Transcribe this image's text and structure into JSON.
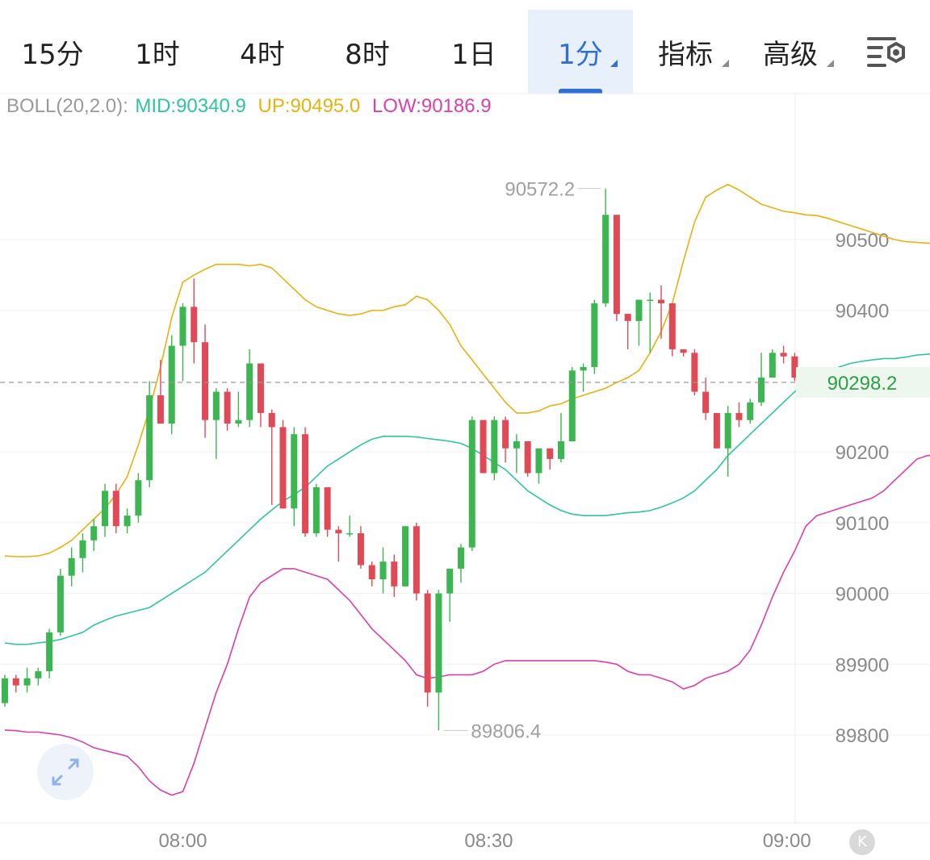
{
  "tabs": [
    {
      "label": "15分",
      "active": false,
      "dropdown": false
    },
    {
      "label": "1时",
      "active": false,
      "dropdown": false
    },
    {
      "label": "4时",
      "active": false,
      "dropdown": false
    },
    {
      "label": "8时",
      "active": false,
      "dropdown": false
    },
    {
      "label": "1日",
      "active": false,
      "dropdown": false
    },
    {
      "label": "1分",
      "active": true,
      "dropdown": true
    },
    {
      "label": "指标",
      "active": false,
      "dropdown": true
    },
    {
      "label": "高级",
      "active": false,
      "dropdown": true
    }
  ],
  "settings_icon": "chart-settings-icon",
  "expand_icon": "expand-arrows-icon",
  "k_button": "K",
  "legend": {
    "name": "BOLL(20,2.0):",
    "mid": "MID:90340.9",
    "up": "UP:90495.0",
    "low": "LOW:90186.9"
  },
  "colors": {
    "up_candle": "#3cb650",
    "down_candle": "#e04a57",
    "mid": "#2ec4a2",
    "upper": "#e8b10e",
    "lower": "#db3fae",
    "active_tab": "#2f6fd6",
    "legend_label": "#9a9a9a",
    "price_tag_bg": "#edf7ee",
    "price_tag_text": "#2f9e45"
  },
  "chart_data": {
    "type": "candlestick",
    "indicator": "BOLL(20,2.0)",
    "current_price": 90298.2,
    "current_price_label": "90298.2",
    "max_label": "90572.2",
    "min_label": "89806.4",
    "y_ticks": [
      90500,
      90400,
      90200,
      90100,
      90000,
      89900,
      89800
    ],
    "y_tick_labels": [
      "90500",
      "90400",
      "90200",
      "90100",
      "90000",
      "89900",
      "89800"
    ],
    "x_ticks": [
      "08:00",
      "08:30",
      "09:00"
    ],
    "ylim": [
      89700,
      90640
    ],
    "grid": true,
    "candles": [
      [
        89845,
        89880,
        89885,
        89840
      ],
      [
        89880,
        89870,
        89885,
        89860
      ],
      [
        89870,
        89880,
        89895,
        89860
      ],
      [
        89880,
        89890,
        89895,
        89870
      ],
      [
        89890,
        89945,
        89950,
        89880
      ],
      [
        89945,
        90025,
        90035,
        89940
      ],
      [
        90025,
        90050,
        90065,
        90010
      ],
      [
        90050,
        90075,
        90085,
        90030
      ],
      [
        90075,
        90095,
        90105,
        90060
      ],
      [
        90095,
        90145,
        90155,
        90080
      ],
      [
        90145,
        90095,
        90155,
        90085
      ],
      [
        90095,
        90110,
        90120,
        90085
      ],
      [
        90110,
        90160,
        90170,
        90100
      ],
      [
        90160,
        90280,
        90300,
        90150
      ],
      [
        90280,
        90240,
        90330,
        90240
      ],
      [
        90240,
        90350,
        90365,
        90225
      ],
      [
        90350,
        90405,
        90410,
        90300
      ],
      [
        90405,
        90355,
        90445,
        90325
      ],
      [
        90355,
        90245,
        90380,
        90220
      ],
      [
        90245,
        90285,
        90290,
        90190
      ],
      [
        90285,
        90240,
        90290,
        90230
      ],
      [
        90240,
        90245,
        90285,
        90235
      ],
      [
        90245,
        90325,
        90345,
        90235
      ],
      [
        90325,
        90255,
        90325,
        90235
      ],
      [
        90255,
        90235,
        90260,
        90125
      ],
      [
        90235,
        90120,
        90245,
        90120
      ],
      [
        90120,
        90225,
        90235,
        90095
      ],
      [
        90225,
        90085,
        90235,
        90080
      ],
      [
        90085,
        90150,
        90155,
        90080
      ],
      [
        90150,
        90090,
        90150,
        90080
      ],
      [
        90090,
        90085,
        90095,
        90045
      ],
      [
        90085,
        90085,
        90110,
        90080
      ],
      [
        90085,
        90040,
        90095,
        90035
      ],
      [
        90040,
        90020,
        90045,
        90010
      ],
      [
        90020,
        90045,
        90065,
        90000
      ],
      [
        90045,
        90010,
        90055,
        89995
      ],
      [
        90010,
        90095,
        90095,
        90010
      ],
      [
        90095,
        90000,
        90100,
        89990
      ],
      [
        90000,
        89860,
        90005,
        89840
      ],
      [
        89860,
        90000,
        90005,
        89806.4
      ],
      [
        90000,
        90035,
        90035,
        89960
      ],
      [
        90035,
        90065,
        90070,
        90015
      ],
      [
        90065,
        90245,
        90250,
        90060
      ],
      [
        90245,
        90170,
        90245,
        90170
      ],
      [
        90170,
        90245,
        90250,
        90160
      ],
      [
        90245,
        90205,
        90250,
        90185
      ],
      [
        90205,
        90215,
        90225,
        90170
      ],
      [
        90215,
        90170,
        90215,
        90165
      ],
      [
        90170,
        90205,
        90205,
        90155
      ],
      [
        90205,
        90190,
        90205,
        90175
      ],
      [
        90190,
        90215,
        90255,
        90185
      ],
      [
        90215,
        90315,
        90320,
        90215
      ],
      [
        90315,
        90320,
        90325,
        90285
      ],
      [
        90320,
        90410,
        90415,
        90310
      ],
      [
        90410,
        90535,
        90572.2,
        90405
      ],
      [
        90535,
        90395,
        90535,
        90385
      ],
      [
        90395,
        90385,
        90395,
        90345
      ],
      [
        90385,
        90415,
        90415,
        90350
      ],
      [
        90415,
        90415,
        90425,
        90340
      ],
      [
        90415,
        90410,
        90435,
        90360
      ],
      [
        90410,
        90345,
        90410,
        90335
      ],
      [
        90345,
        90340,
        90345,
        90335
      ],
      [
        90340,
        90285,
        90345,
        90280
      ],
      [
        90285,
        90255,
        90305,
        90245
      ],
      [
        90255,
        90205,
        90255,
        90205
      ],
      [
        90205,
        90255,
        90265,
        90165
      ],
      [
        90255,
        90245,
        90270,
        90235
      ],
      [
        90245,
        90270,
        90275,
        90240
      ],
      [
        90270,
        90305,
        90340,
        90265
      ],
      [
        90305,
        90340,
        90345,
        90305
      ],
      [
        90340,
        90335,
        90350,
        90325
      ],
      [
        90335,
        90305,
        90340,
        90300
      ],
      [
        90305,
        90300,
        90315,
        90280
      ],
      [
        90300,
        90298.2,
        90315,
        90298.2
      ]
    ],
    "series": [
      {
        "name": "MID",
        "values": [
          89930,
          89928,
          89928,
          89930,
          89932,
          89935,
          89940,
          89945,
          89955,
          89962,
          89968,
          89972,
          89976,
          89980,
          89990,
          90000,
          90010,
          90020,
          90030,
          90045,
          90060,
          90075,
          90090,
          90105,
          90118,
          90130,
          90140,
          90150,
          90165,
          90180,
          90190,
          90200,
          90210,
          90218,
          90222,
          90222,
          90222,
          90221,
          90219,
          90217,
          90215,
          90212,
          90205,
          90195,
          90185,
          90175,
          90160,
          90145,
          90135,
          90125,
          90117,
          90112,
          90110,
          90110,
          90110,
          90112,
          90114,
          90115,
          90117,
          90122,
          90128,
          90135,
          90145,
          90160,
          90175,
          90195,
          90210,
          90225,
          90240,
          90255,
          90270,
          90285,
          90295,
          90305,
          90313,
          90320,
          90325,
          90328,
          90330,
          90332,
          90332,
          90334,
          90337,
          90338,
          90338,
          90340,
          90340.9
        ]
      },
      {
        "name": "UP",
        "values": [
          90053,
          90052,
          90052,
          90053,
          90057,
          90065,
          90075,
          90090,
          90105,
          90120,
          90140,
          90165,
          90210,
          90260,
          90320,
          90390,
          90440,
          90450,
          90458,
          90465,
          90465,
          90465,
          90463,
          90465,
          90460,
          90445,
          90430,
          90415,
          90405,
          90400,
          90395,
          90393,
          90395,
          90400,
          90400,
          90405,
          90408,
          90420,
          90415,
          90400,
          90380,
          90350,
          90330,
          90310,
          90290,
          90270,
          90255,
          90255,
          90258,
          90265,
          90268,
          90275,
          90280,
          90285,
          90290,
          90298,
          90305,
          90315,
          90340,
          90370,
          90410,
          90470,
          90525,
          90560,
          90570,
          90578,
          90570,
          90560,
          90550,
          90545,
          90540,
          90538,
          90535,
          90534,
          90530,
          90525,
          90520,
          90515,
          90510,
          90505,
          90500,
          90497,
          90496,
          90495,
          90495,
          90495,
          90495.0
        ]
      },
      {
        "name": "LOW",
        "values": [
          89807,
          89806,
          89804,
          89804,
          89802,
          89800,
          89796,
          89790,
          89782,
          89778,
          89774,
          89770,
          89755,
          89735,
          89722,
          89715,
          89720,
          89760,
          89810,
          89860,
          89900,
          89950,
          89995,
          90015,
          90025,
          90035,
          90035,
          90030,
          90025,
          90020,
          90005,
          89990,
          89970,
          89950,
          89935,
          89920,
          89905,
          89885,
          89880,
          89882,
          89885,
          89885,
          89885,
          89890,
          89900,
          89905,
          89905,
          89905,
          89905,
          89905,
          89905,
          89905,
          89905,
          89905,
          89903,
          89900,
          89890,
          89885,
          89885,
          89880,
          89875,
          89865,
          89870,
          89880,
          89885,
          89890,
          89900,
          89920,
          89955,
          89995,
          90030,
          90060,
          90095,
          90110,
          90115,
          90120,
          90125,
          90130,
          90135,
          90145,
          90160,
          90175,
          90190,
          90195,
          90192,
          90190,
          90186.9
        ]
      }
    ]
  }
}
